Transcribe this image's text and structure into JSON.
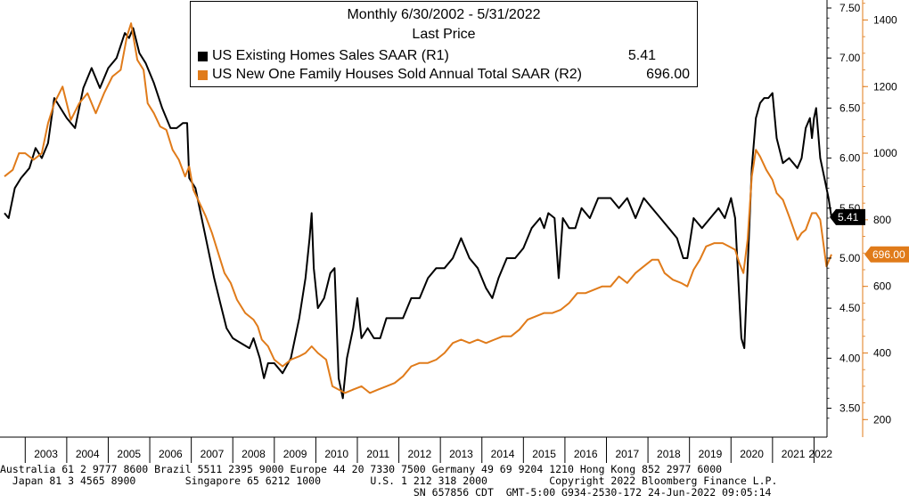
{
  "chart_data": {
    "type": "line",
    "title": "Monthly 6/30/2002 - 5/31/2022",
    "subtitle": "Last Price",
    "x_labels": [
      "2003",
      "2004",
      "2005",
      "2006",
      "2007",
      "2008",
      "2009",
      "2010",
      "2011",
      "2012",
      "2013",
      "2014",
      "2015",
      "2016",
      "2017",
      "2018",
      "2019",
      "2020",
      "2021",
      "2022"
    ],
    "x_range": [
      2002.5,
      2022.42
    ],
    "right_axis_1": {
      "range": [
        3.22,
        7.58
      ],
      "ticks": [
        "3.50",
        "4.00",
        "4.50",
        "5.00",
        "5.50",
        "6.00",
        "6.50",
        "7.00",
        "7.50"
      ],
      "color": "#000000"
    },
    "right_axis_2": {
      "range": [
        150,
        1460
      ],
      "ticks": [
        "200",
        "400",
        "600",
        "800",
        "1000",
        "1200",
        "1400"
      ],
      "color": "#e07b1a"
    },
    "series": [
      {
        "name": "US Existing Homes Sales SAAR",
        "axis": "R1",
        "color": "#000000",
        "last_value": "5.41",
        "points": [
          [
            2002.5,
            5.45
          ],
          [
            2002.6,
            5.4
          ],
          [
            2002.75,
            5.7
          ],
          [
            2002.9,
            5.8
          ],
          [
            2003.1,
            5.9
          ],
          [
            2003.25,
            6.1
          ],
          [
            2003.4,
            6.0
          ],
          [
            2003.55,
            6.15
          ],
          [
            2003.7,
            6.6
          ],
          [
            2003.85,
            6.5
          ],
          [
            2004.0,
            6.4
          ],
          [
            2004.2,
            6.3
          ],
          [
            2004.4,
            6.7
          ],
          [
            2004.6,
            6.9
          ],
          [
            2004.8,
            6.7
          ],
          [
            2005.0,
            6.9
          ],
          [
            2005.2,
            7.0
          ],
          [
            2005.4,
            7.25
          ],
          [
            2005.5,
            7.2
          ],
          [
            2005.6,
            7.3
          ],
          [
            2005.75,
            7.05
          ],
          [
            2005.9,
            6.95
          ],
          [
            2006.1,
            6.75
          ],
          [
            2006.3,
            6.5
          ],
          [
            2006.5,
            6.3
          ],
          [
            2006.65,
            6.3
          ],
          [
            2006.8,
            6.35
          ],
          [
            2006.9,
            6.35
          ],
          [
            2006.95,
            5.8
          ],
          [
            2007.1,
            5.7
          ],
          [
            2007.25,
            5.4
          ],
          [
            2007.4,
            5.1
          ],
          [
            2007.55,
            4.8
          ],
          [
            2007.7,
            4.55
          ],
          [
            2007.85,
            4.3
          ],
          [
            2008.0,
            4.2
          ],
          [
            2008.2,
            4.15
          ],
          [
            2008.4,
            4.1
          ],
          [
            2008.5,
            4.2
          ],
          [
            2008.65,
            4.0
          ],
          [
            2008.75,
            3.8
          ],
          [
            2008.85,
            3.95
          ],
          [
            2009.0,
            3.95
          ],
          [
            2009.2,
            3.85
          ],
          [
            2009.4,
            4.0
          ],
          [
            2009.6,
            4.4
          ],
          [
            2009.75,
            4.8
          ],
          [
            2009.85,
            5.2
          ],
          [
            2009.9,
            5.45
          ],
          [
            2009.95,
            4.9
          ],
          [
            2010.05,
            4.5
          ],
          [
            2010.2,
            4.6
          ],
          [
            2010.35,
            4.85
          ],
          [
            2010.45,
            4.9
          ],
          [
            2010.55,
            3.8
          ],
          [
            2010.65,
            3.6
          ],
          [
            2010.75,
            4.0
          ],
          [
            2010.9,
            4.3
          ],
          [
            2011.0,
            4.6
          ],
          [
            2011.1,
            4.2
          ],
          [
            2011.25,
            4.3
          ],
          [
            2011.4,
            4.2
          ],
          [
            2011.55,
            4.2
          ],
          [
            2011.7,
            4.4
          ],
          [
            2011.9,
            4.4
          ],
          [
            2012.1,
            4.4
          ],
          [
            2012.3,
            4.6
          ],
          [
            2012.5,
            4.6
          ],
          [
            2012.7,
            4.8
          ],
          [
            2012.9,
            4.9
          ],
          [
            2013.1,
            4.9
          ],
          [
            2013.3,
            5.0
          ],
          [
            2013.5,
            5.2
          ],
          [
            2013.7,
            5.0
          ],
          [
            2013.9,
            4.9
          ],
          [
            2014.1,
            4.7
          ],
          [
            2014.25,
            4.6
          ],
          [
            2014.4,
            4.8
          ],
          [
            2014.6,
            5.0
          ],
          [
            2014.8,
            5.0
          ],
          [
            2015.0,
            5.1
          ],
          [
            2015.2,
            5.3
          ],
          [
            2015.4,
            5.4
          ],
          [
            2015.5,
            5.3
          ],
          [
            2015.6,
            5.45
          ],
          [
            2015.75,
            5.4
          ],
          [
            2015.85,
            4.8
          ],
          [
            2015.95,
            5.4
          ],
          [
            2016.1,
            5.3
          ],
          [
            2016.25,
            5.3
          ],
          [
            2016.4,
            5.5
          ],
          [
            2016.6,
            5.4
          ],
          [
            2016.8,
            5.6
          ],
          [
            2016.95,
            5.6
          ],
          [
            2017.1,
            5.6
          ],
          [
            2017.3,
            5.5
          ],
          [
            2017.5,
            5.6
          ],
          [
            2017.7,
            5.4
          ],
          [
            2017.9,
            5.6
          ],
          [
            2018.1,
            5.5
          ],
          [
            2018.3,
            5.4
          ],
          [
            2018.5,
            5.3
          ],
          [
            2018.7,
            5.2
          ],
          [
            2018.85,
            5.0
          ],
          [
            2018.95,
            5.0
          ],
          [
            2019.1,
            5.4
          ],
          [
            2019.3,
            5.3
          ],
          [
            2019.5,
            5.4
          ],
          [
            2019.7,
            5.5
          ],
          [
            2019.85,
            5.4
          ],
          [
            2020.0,
            5.6
          ],
          [
            2020.1,
            5.4
          ],
          [
            2020.25,
            4.2
          ],
          [
            2020.32,
            4.1
          ],
          [
            2020.4,
            4.9
          ],
          [
            2020.5,
            5.9
          ],
          [
            2020.6,
            6.4
          ],
          [
            2020.7,
            6.55
          ],
          [
            2020.8,
            6.6
          ],
          [
            2020.9,
            6.6
          ],
          [
            2021.0,
            6.65
          ],
          [
            2021.1,
            6.2
          ],
          [
            2021.25,
            5.95
          ],
          [
            2021.4,
            6.0
          ],
          [
            2021.6,
            5.9
          ],
          [
            2021.7,
            6.0
          ],
          [
            2021.8,
            6.3
          ],
          [
            2021.9,
            6.4
          ],
          [
            2021.95,
            6.2
          ],
          [
            2022.0,
            6.4
          ],
          [
            2022.05,
            6.5
          ],
          [
            2022.15,
            6.0
          ],
          [
            2022.25,
            5.8
          ],
          [
            2022.35,
            5.6
          ],
          [
            2022.42,
            5.41
          ]
        ]
      },
      {
        "name": "US New One Family Houses Sold Annual Total SAAR",
        "axis": "R2",
        "color": "#e07b1a",
        "last_value": "696.00",
        "points": [
          [
            2002.5,
            930
          ],
          [
            2002.7,
            950
          ],
          [
            2002.85,
            1000
          ],
          [
            2003.0,
            1000
          ],
          [
            2003.2,
            980
          ],
          [
            2003.4,
            1000
          ],
          [
            2003.55,
            1090
          ],
          [
            2003.7,
            1150
          ],
          [
            2003.9,
            1200
          ],
          [
            2004.1,
            1100
          ],
          [
            2004.3,
            1150
          ],
          [
            2004.5,
            1180
          ],
          [
            2004.7,
            1120
          ],
          [
            2004.9,
            1180
          ],
          [
            2005.1,
            1230
          ],
          [
            2005.3,
            1250
          ],
          [
            2005.45,
            1350
          ],
          [
            2005.55,
            1390
          ],
          [
            2005.7,
            1280
          ],
          [
            2005.85,
            1250
          ],
          [
            2005.95,
            1150
          ],
          [
            2006.1,
            1120
          ],
          [
            2006.25,
            1080
          ],
          [
            2006.4,
            1070
          ],
          [
            2006.55,
            1010
          ],
          [
            2006.7,
            980
          ],
          [
            2006.85,
            930
          ],
          [
            2006.95,
            960
          ],
          [
            2007.05,
            890
          ],
          [
            2007.2,
            850
          ],
          [
            2007.35,
            810
          ],
          [
            2007.5,
            760
          ],
          [
            2007.65,
            700
          ],
          [
            2007.8,
            640
          ],
          [
            2007.95,
            610
          ],
          [
            2008.1,
            560
          ],
          [
            2008.3,
            520
          ],
          [
            2008.5,
            500
          ],
          [
            2008.6,
            480
          ],
          [
            2008.7,
            440
          ],
          [
            2008.85,
            420
          ],
          [
            2009.0,
            380
          ],
          [
            2009.2,
            360
          ],
          [
            2009.4,
            380
          ],
          [
            2009.6,
            390
          ],
          [
            2009.75,
            400
          ],
          [
            2009.9,
            420
          ],
          [
            2010.05,
            400
          ],
          [
            2010.25,
            380
          ],
          [
            2010.4,
            300
          ],
          [
            2010.55,
            290
          ],
          [
            2010.7,
            280
          ],
          [
            2010.9,
            290
          ],
          [
            2011.1,
            300
          ],
          [
            2011.3,
            280
          ],
          [
            2011.5,
            290
          ],
          [
            2011.7,
            300
          ],
          [
            2011.9,
            310
          ],
          [
            2012.1,
            330
          ],
          [
            2012.3,
            360
          ],
          [
            2012.5,
            370
          ],
          [
            2012.7,
            370
          ],
          [
            2012.9,
            380
          ],
          [
            2013.1,
            400
          ],
          [
            2013.3,
            430
          ],
          [
            2013.5,
            440
          ],
          [
            2013.7,
            430
          ],
          [
            2013.9,
            440
          ],
          [
            2014.1,
            430
          ],
          [
            2014.3,
            440
          ],
          [
            2014.5,
            450
          ],
          [
            2014.7,
            450
          ],
          [
            2014.9,
            470
          ],
          [
            2015.1,
            500
          ],
          [
            2015.3,
            510
          ],
          [
            2015.5,
            520
          ],
          [
            2015.7,
            520
          ],
          [
            2015.9,
            530
          ],
          [
            2016.1,
            550
          ],
          [
            2016.3,
            580
          ],
          [
            2016.5,
            580
          ],
          [
            2016.7,
            590
          ],
          [
            2016.9,
            600
          ],
          [
            2017.1,
            600
          ],
          [
            2017.3,
            630
          ],
          [
            2017.5,
            610
          ],
          [
            2017.7,
            640
          ],
          [
            2017.9,
            660
          ],
          [
            2018.1,
            680
          ],
          [
            2018.25,
            680
          ],
          [
            2018.4,
            640
          ],
          [
            2018.6,
            620
          ],
          [
            2018.8,
            610
          ],
          [
            2018.95,
            600
          ],
          [
            2019.1,
            650
          ],
          [
            2019.25,
            680
          ],
          [
            2019.4,
            720
          ],
          [
            2019.6,
            730
          ],
          [
            2019.8,
            730
          ],
          [
            2019.95,
            720
          ],
          [
            2020.1,
            710
          ],
          [
            2020.2,
            670
          ],
          [
            2020.3,
            640
          ],
          [
            2020.4,
            740
          ],
          [
            2020.5,
            930
          ],
          [
            2020.6,
            1010
          ],
          [
            2020.7,
            990
          ],
          [
            2020.85,
            950
          ],
          [
            2021.0,
            920
          ],
          [
            2021.1,
            880
          ],
          [
            2021.25,
            860
          ],
          [
            2021.4,
            810
          ],
          [
            2021.6,
            740
          ],
          [
            2021.7,
            760
          ],
          [
            2021.8,
            770
          ],
          [
            2021.95,
            820
          ],
          [
            2022.05,
            820
          ],
          [
            2022.15,
            800
          ],
          [
            2022.3,
            660
          ],
          [
            2022.42,
            696
          ]
        ]
      }
    ]
  },
  "footer": {
    "line1": "Australia 61 2 9777 8600 Brazil 5511 2395 9000 Europe 44 20 7330 7500 Germany 49 69 9204 1210 Hong Kong 852 2977 6000",
    "line2": "  Japan 81 3 4565 8900        Singapore 65 6212 1000        U.S. 1 212 318 2000          Copyright 2022 Bloomberg Finance L.P.",
    "line3": "                                                                   SN 657856 CDT  GMT-5:00 G934-2530-172 24-Jun-2022 09:05:14"
  },
  "legend": {
    "title": "Monthly 6/30/2002 - 5/31/2022",
    "subtitle": "Last Price",
    "row1_name": "US Existing Homes Sales SAAR  (R1)",
    "row1_value": "5.41",
    "row2_name": "US New One Family Houses Sold Annual Total SAAR  (R2)",
    "row2_value": "696.00"
  }
}
